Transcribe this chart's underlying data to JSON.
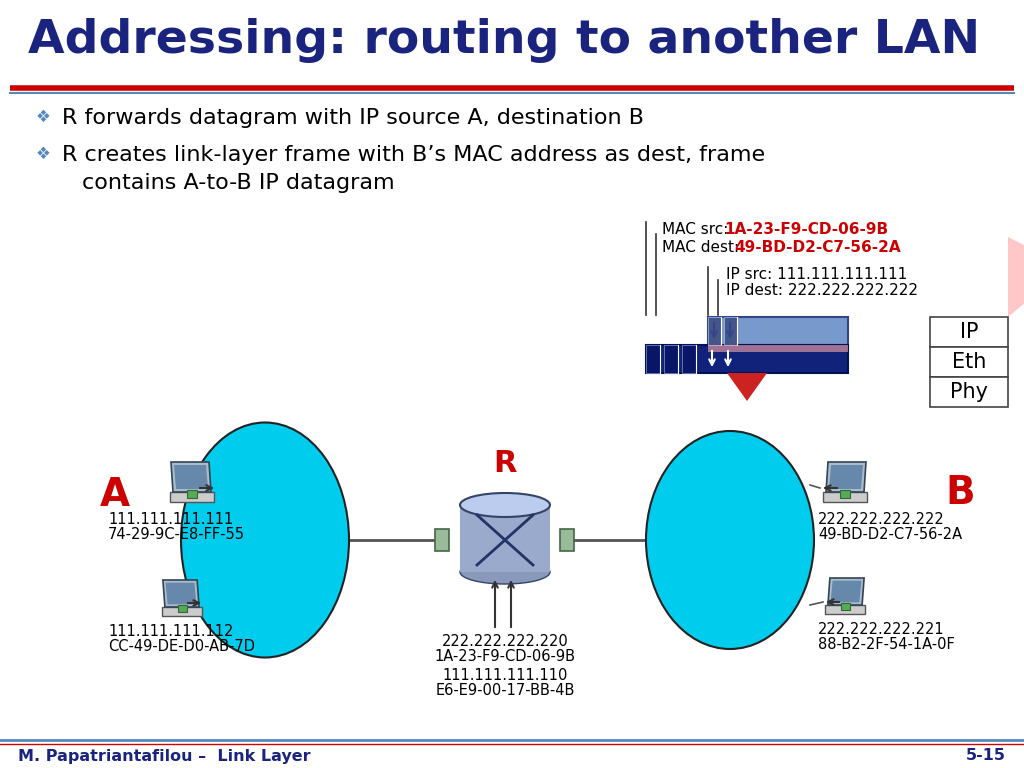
{
  "title": "Addressing: routing to another LAN",
  "title_color": "#1a237e",
  "title_fontsize": 34,
  "underline_red_color": "#cc0000",
  "underline_blue_color": "#5588bb",
  "bullet1": "R forwards datagram with IP source A, destination B",
  "bullet2a": "R creates link-layer frame with B’s MAC address as dest, frame",
  "bullet2b": "contains A-to-B IP datagram",
  "bullet_color": "#000000",
  "bullet_fontsize": 16,
  "mac_src_label": "MAC src: ",
  "mac_src_val": "1A-23-F9-CD-06-9B",
  "mac_dest_label": "MAC dest: ",
  "mac_dest_val": "49-BD-D2-C7-56-2A",
  "mac_color": "#cc0000",
  "ip_src_label": "IP src: 111.111.111.111",
  "ip_dest_label": "IP dest: 222.222.222.222",
  "frame_layers": [
    "IP",
    "Eth",
    "Phy"
  ],
  "node_A_label": "A",
  "node_B_label": "B",
  "node_R_label": "R",
  "node_label_color_AB": "#cc0000",
  "node_label_color_R": "#cc0000",
  "lan1_color": "#00ccee",
  "lan2_color": "#00ccee",
  "pc_top_left_ip": "111.111.111.111",
  "pc_top_left_mac": "74-29-9C-E8-FF-55",
  "pc_bot_left_ip": "111.111.111.112",
  "pc_bot_left_mac": "CC-49-DE-D0-AB-7D",
  "router_ip1": "222.222.222.220",
  "router_mac1": "1A-23-F9-CD-06-9B",
  "router_ip2": "111.111.111.110",
  "router_mac2": "E6-E9-00-17-BB-4B",
  "pc_top_right_ip": "222.222.222.222",
  "pc_top_right_mac": "49-BD-D2-C7-56-2A",
  "pc_bot_right_ip": "222.222.222.221",
  "pc_bot_right_mac": "88-B2-2F-54-1A-0F",
  "footer_left": "M. Papatriantafilou –  Link Layer",
  "footer_right": "5-15",
  "footer_color": "#1a237e",
  "bg_color": "#ffffff"
}
